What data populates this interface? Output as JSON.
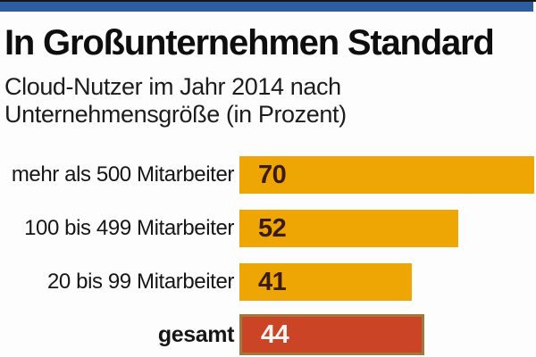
{
  "masthead": {
    "top_rule_color": "#161616",
    "band_color": "#2b5da0"
  },
  "header": {
    "title": "In Großunternehmen Standard",
    "subtitle_line1": "Cloud-Nutzer im Jahr 2014 nach",
    "subtitle_line2": "Unternehmensgröße (in Prozent)"
  },
  "chart_data": {
    "type": "bar",
    "orientation": "horizontal",
    "title": "In Großunternehmen Standard",
    "subtitle": "Cloud-Nutzer im Jahr 2014 nach Unternehmensgröße (in Prozent)",
    "categories": [
      "mehr als 500 Mitarbeiter",
      "100 bis 499 Mitarbeiter",
      "20 bis 99 Mitarbeiter",
      "gesamt"
    ],
    "values": [
      70,
      52,
      41,
      44
    ],
    "xlim": [
      0,
      70
    ],
    "grid": false,
    "legend": "none",
    "value_labels_inside_bars": true,
    "bar_colors": [
      "#eda604",
      "#eda604",
      "#eda604",
      "#cc4426"
    ],
    "value_label_colors": [
      "#3a1b0c",
      "#3a1b0c",
      "#3a1b0c",
      "#fdf4f4"
    ],
    "highlight_category": "gesamt",
    "highlight_border_color": "#a1783f",
    "rows": [
      {
        "label": "mehr als 500 Mitarbeiter",
        "value": "70"
      },
      {
        "label": "100 bis 499 Mitarbeiter",
        "value": "52"
      },
      {
        "label": "20 bis 99 Mitarbeiter",
        "value": "41"
      },
      {
        "label": "gesamt",
        "value": "44"
      }
    ]
  }
}
